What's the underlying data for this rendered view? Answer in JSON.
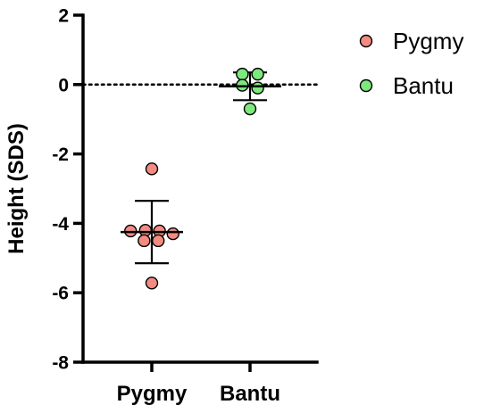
{
  "chart_data": {
    "type": "scatter",
    "ylabel": "Height (SDS)",
    "ylim": [
      -8,
      2
    ],
    "yticks": [
      2,
      0,
      -2,
      -4,
      -6,
      -8
    ],
    "ytick_labels": [
      "2",
      "0",
      "-2",
      "-4",
      "-6",
      "-8"
    ],
    "categories": [
      "Pygmy",
      "Bantu"
    ],
    "reference_line": {
      "y": 0,
      "style": "dotted"
    },
    "legend_position": "top-right",
    "series": [
      {
        "name": "Pygmy",
        "category": "Pygmy",
        "color": "#f28b82",
        "points": [
          {
            "offset": 0.0,
            "y": -2.43
          },
          {
            "offset": -0.33,
            "y": -4.22
          },
          {
            "offset": -0.1,
            "y": -4.2
          },
          {
            "offset": 0.12,
            "y": -4.22
          },
          {
            "offset": 0.33,
            "y": -4.3
          },
          {
            "offset": -0.12,
            "y": -4.5
          },
          {
            "offset": 0.1,
            "y": -4.5
          },
          {
            "offset": 0.0,
            "y": -5.72
          }
        ],
        "mean": -4.25,
        "error_low": -5.15,
        "error_high": -3.35
      },
      {
        "name": "Bantu",
        "category": "Bantu",
        "color": "#7de87d",
        "points": [
          {
            "offset": -0.12,
            "y": 0.3
          },
          {
            "offset": 0.12,
            "y": 0.3
          },
          {
            "offset": -0.12,
            "y": -0.02
          },
          {
            "offset": 0.12,
            "y": -0.1
          },
          {
            "offset": 0.0,
            "y": -0.7
          }
        ],
        "mean": -0.05,
        "error_low": -0.45,
        "error_high": 0.35
      }
    ]
  }
}
